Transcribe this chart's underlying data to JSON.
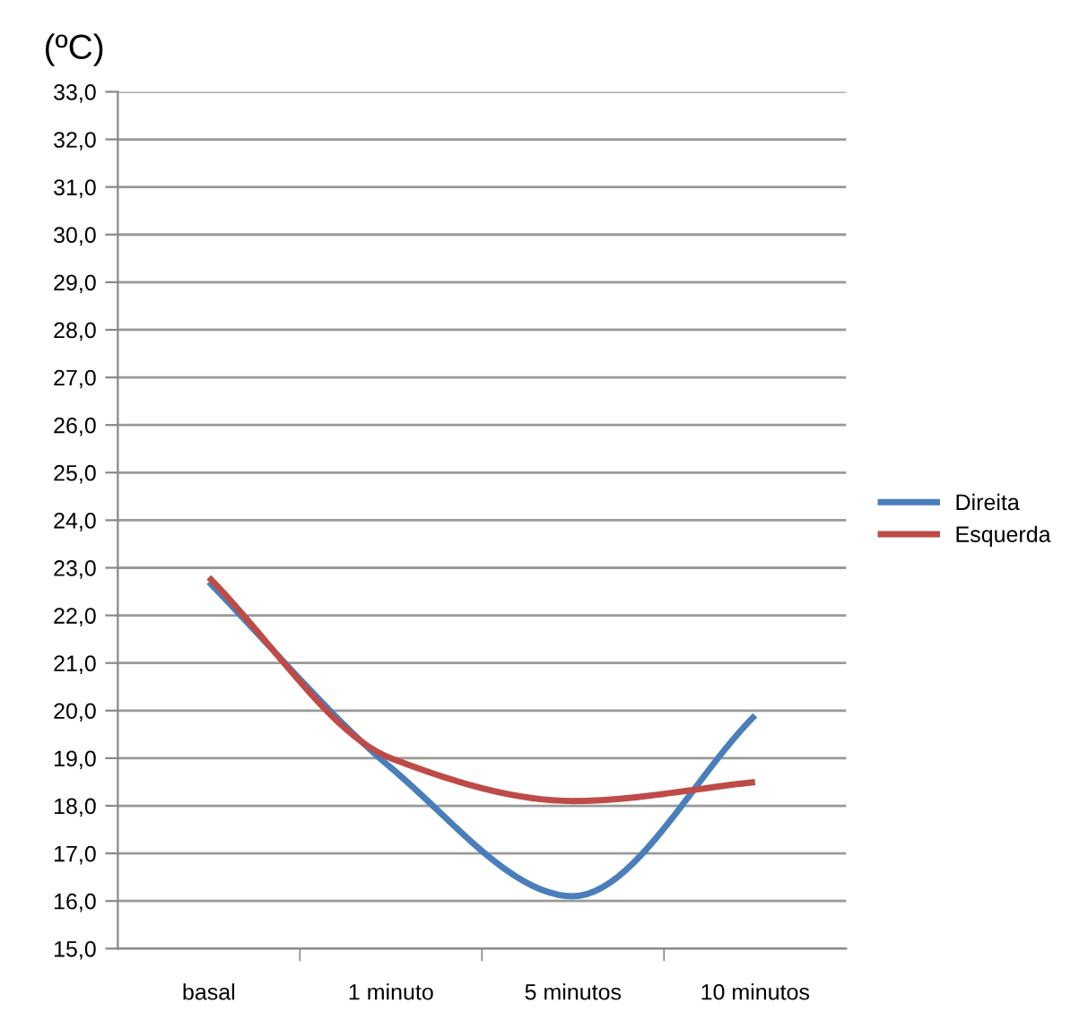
{
  "chart_data": {
    "type": "line",
    "ylabel": "(ºC)",
    "categories": [
      "basal",
      "1 minuto",
      "5 minutos",
      "10 minutos"
    ],
    "series": [
      {
        "name": "Direita",
        "color": "#4a7ebb",
        "values": [
          22.7,
          18.8,
          16.1,
          19.9
        ]
      },
      {
        "name": "Esquerda",
        "color": "#be4b48",
        "values": [
          22.8,
          19.0,
          18.1,
          18.5
        ]
      }
    ],
    "ylim": [
      15,
      33
    ],
    "yticks": [
      {
        "value": 15,
        "label": "15,0"
      },
      {
        "value": 16,
        "label": "16,0"
      },
      {
        "value": 17,
        "label": "17,0"
      },
      {
        "value": 18,
        "label": "18,0"
      },
      {
        "value": 19,
        "label": "19,0"
      },
      {
        "value": 20,
        "label": "20,0"
      },
      {
        "value": 21,
        "label": "21,0"
      },
      {
        "value": 22,
        "label": "22,0"
      },
      {
        "value": 23,
        "label": "23,0"
      },
      {
        "value": 24,
        "label": "24,0"
      },
      {
        "value": 25,
        "label": "25,0"
      },
      {
        "value": 26,
        "label": "26,0"
      },
      {
        "value": 27,
        "label": "27,0"
      },
      {
        "value": 28,
        "label": "28,0"
      },
      {
        "value": 29,
        "label": "29,0"
      },
      {
        "value": 30,
        "label": "30,0"
      },
      {
        "value": 31,
        "label": "31,0"
      },
      {
        "value": 32,
        "label": "32,0"
      },
      {
        "value": 33,
        "label": "33,0"
      }
    ],
    "grid": "y",
    "legend": "right",
    "marker": "none",
    "line_style": "solid"
  }
}
